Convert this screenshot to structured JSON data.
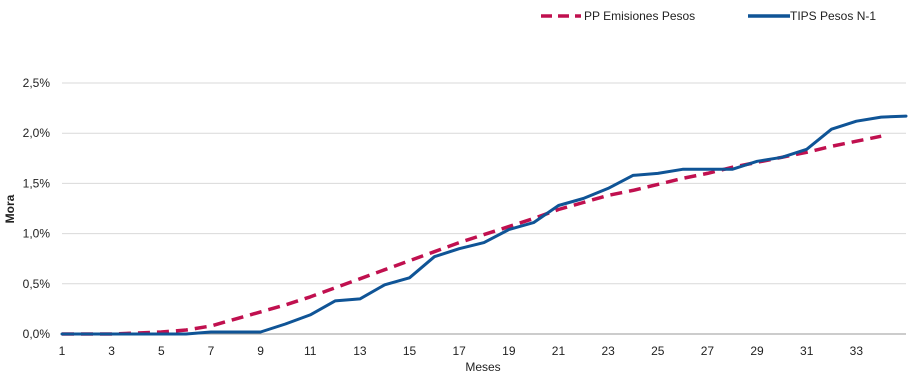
{
  "chart_data": {
    "type": "line",
    "title": "",
    "xlabel": "Meses",
    "ylabel": "Mora",
    "xlim": [
      1,
      35
    ],
    "ylim": [
      0,
      2.5
    ],
    "grid": true,
    "legend_position": "top-right",
    "x_ticks": [
      "1",
      "3",
      "5",
      "7",
      "9",
      "11",
      "13",
      "15",
      "17",
      "19",
      "21",
      "23",
      "25",
      "27",
      "29",
      "31",
      "33"
    ],
    "y_ticks": [
      "0,0%",
      "0,5%",
      "1,0%",
      "1,5%",
      "2,0%",
      "2,5%"
    ],
    "x": [
      1,
      2,
      3,
      4,
      5,
      6,
      7,
      8,
      9,
      10,
      11,
      12,
      13,
      14,
      15,
      16,
      17,
      18,
      19,
      20,
      21,
      22,
      23,
      24,
      25,
      26,
      27,
      28,
      29,
      30,
      31,
      32,
      33,
      34,
      35
    ],
    "series": [
      {
        "name": "PP Emisiones Pesos",
        "color": "#c0104f",
        "style": "dashed",
        "x": [
          1,
          2,
          3,
          4,
          5,
          6,
          7,
          8,
          9,
          10,
          11,
          12,
          13,
          14,
          15,
          16,
          17,
          18,
          19,
          20,
          21,
          22,
          23,
          24,
          25,
          26,
          27,
          28,
          29,
          30,
          31,
          32,
          33,
          34
        ],
        "values": [
          0.0,
          0.0,
          0.0,
          0.01,
          0.02,
          0.04,
          0.08,
          0.15,
          0.22,
          0.29,
          0.37,
          0.46,
          0.55,
          0.64,
          0.73,
          0.82,
          0.91,
          0.99,
          1.07,
          1.15,
          1.24,
          1.31,
          1.38,
          1.43,
          1.49,
          1.55,
          1.6,
          1.66,
          1.71,
          1.76,
          1.81,
          1.87,
          1.92,
          1.97
        ]
      },
      {
        "name": "TIPS Pesos N-1",
        "color": "#0f5496",
        "style": "solid",
        "x": [
          1,
          2,
          3,
          4,
          5,
          6,
          7,
          8,
          9,
          10,
          11,
          12,
          13,
          14,
          15,
          16,
          17,
          18,
          19,
          20,
          21,
          22,
          23,
          24,
          25,
          26,
          27,
          28,
          29,
          30,
          31,
          32,
          33,
          34,
          35
        ],
        "values": [
          0.0,
          0.0,
          0.0,
          0.0,
          0.0,
          0.0,
          0.02,
          0.02,
          0.02,
          0.1,
          0.19,
          0.33,
          0.35,
          0.49,
          0.56,
          0.77,
          0.85,
          0.91,
          1.04,
          1.11,
          1.28,
          1.35,
          1.45,
          1.58,
          1.6,
          1.64,
          1.64,
          1.64,
          1.72,
          1.76,
          1.84,
          2.04,
          2.12,
          2.16,
          2.17
        ]
      }
    ]
  }
}
